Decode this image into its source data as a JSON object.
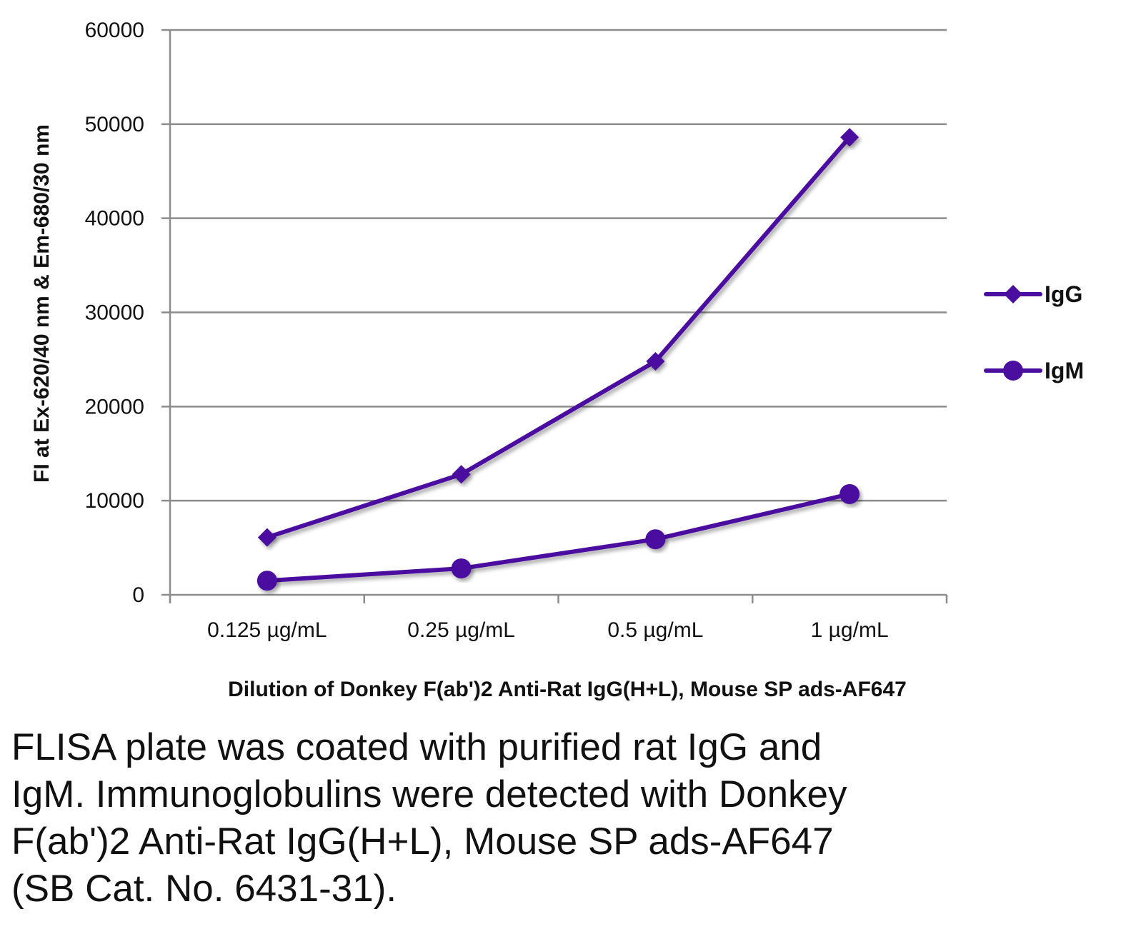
{
  "chart_data": {
    "type": "line",
    "categories": [
      "0.125 µg/mL",
      "0.25 µg/mL",
      "0.5 µg/mL",
      "1 µg/mL"
    ],
    "series": [
      {
        "name": "IgG",
        "marker": "diamond",
        "values": [
          6100,
          12800,
          24800,
          48600
        ]
      },
      {
        "name": "IgM",
        "marker": "circle",
        "values": [
          1500,
          2800,
          5900,
          10700
        ]
      }
    ],
    "xlabel": "Dilution of Donkey F(ab')2 Anti-Rat IgG(H+L), Mouse SP ads-AF647",
    "ylabel": "FI at Ex-620/40 nm & Em-680/30 nm",
    "ylim": [
      0,
      60000
    ],
    "yticks": [
      "0",
      "10000",
      "20000",
      "30000",
      "40000",
      "50000",
      "60000"
    ],
    "grid": true,
    "legend_position": "right",
    "colors": {
      "series": "#4b0fa0",
      "grid": "#8c8c8c",
      "axis": "#8c8c8c"
    }
  },
  "caption": "FLISA plate was coated with purified rat IgG and\nIgM.  Immunoglobulins were detected with Donkey\nF(ab')2 Anti-Rat IgG(H+L), Mouse SP ads-AF647\n(SB Cat. No. 6431-31)."
}
